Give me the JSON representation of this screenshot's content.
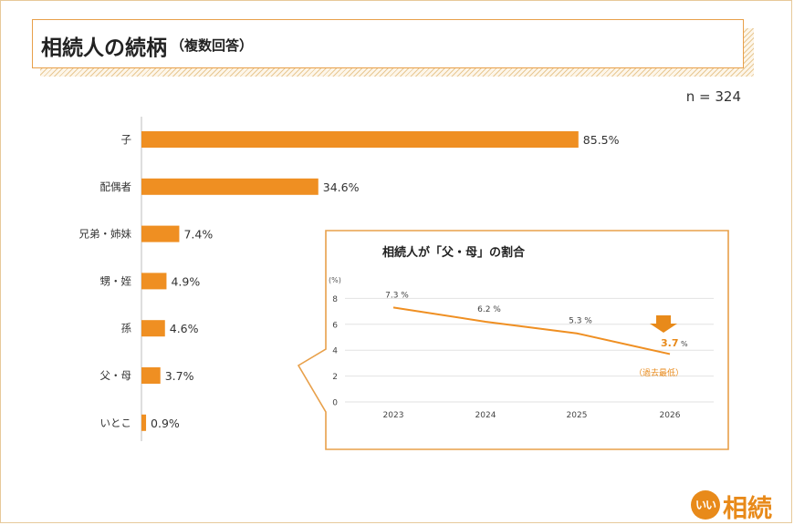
{
  "header": {
    "title": "相続人の続柄",
    "subtitle": "（複数回答）"
  },
  "sample_size": "n = 324",
  "chart_data": [
    {
      "type": "bar",
      "orientation": "horizontal",
      "categories": [
        "子",
        "配偶者",
        "兄弟・姉妹",
        "甥・姪",
        "孫",
        "父・母",
        "いとこ"
      ],
      "values": [
        85.5,
        34.6,
        7.4,
        4.9,
        4.6,
        3.7,
        0.9
      ],
      "value_labels": [
        "85.5%",
        "34.6%",
        "7.4%",
        "4.9%",
        "4.6%",
        "3.7%",
        "0.9%"
      ],
      "xlim": [
        0,
        100
      ],
      "bar_color": "#ef8f22"
    },
    {
      "type": "line",
      "title": "相続人が「父・母」の割合",
      "ylabel": "(%)",
      "x": [
        "2023",
        "2024",
        "2025",
        "2026"
      ],
      "values": [
        7.3,
        6.2,
        5.3,
        3.7
      ],
      "value_labels": [
        "7.3 %",
        "6.2 %",
        "5.3 %",
        "3.7 %"
      ],
      "ylim": [
        0,
        8
      ],
      "yticks": [
        "0",
        "2",
        "4",
        "6",
        "8"
      ],
      "grid": true,
      "annotation": "（過去最低）",
      "line_color": "#ef8f22"
    }
  ],
  "logo": {
    "circle_text": "いい",
    "text": "相続"
  }
}
